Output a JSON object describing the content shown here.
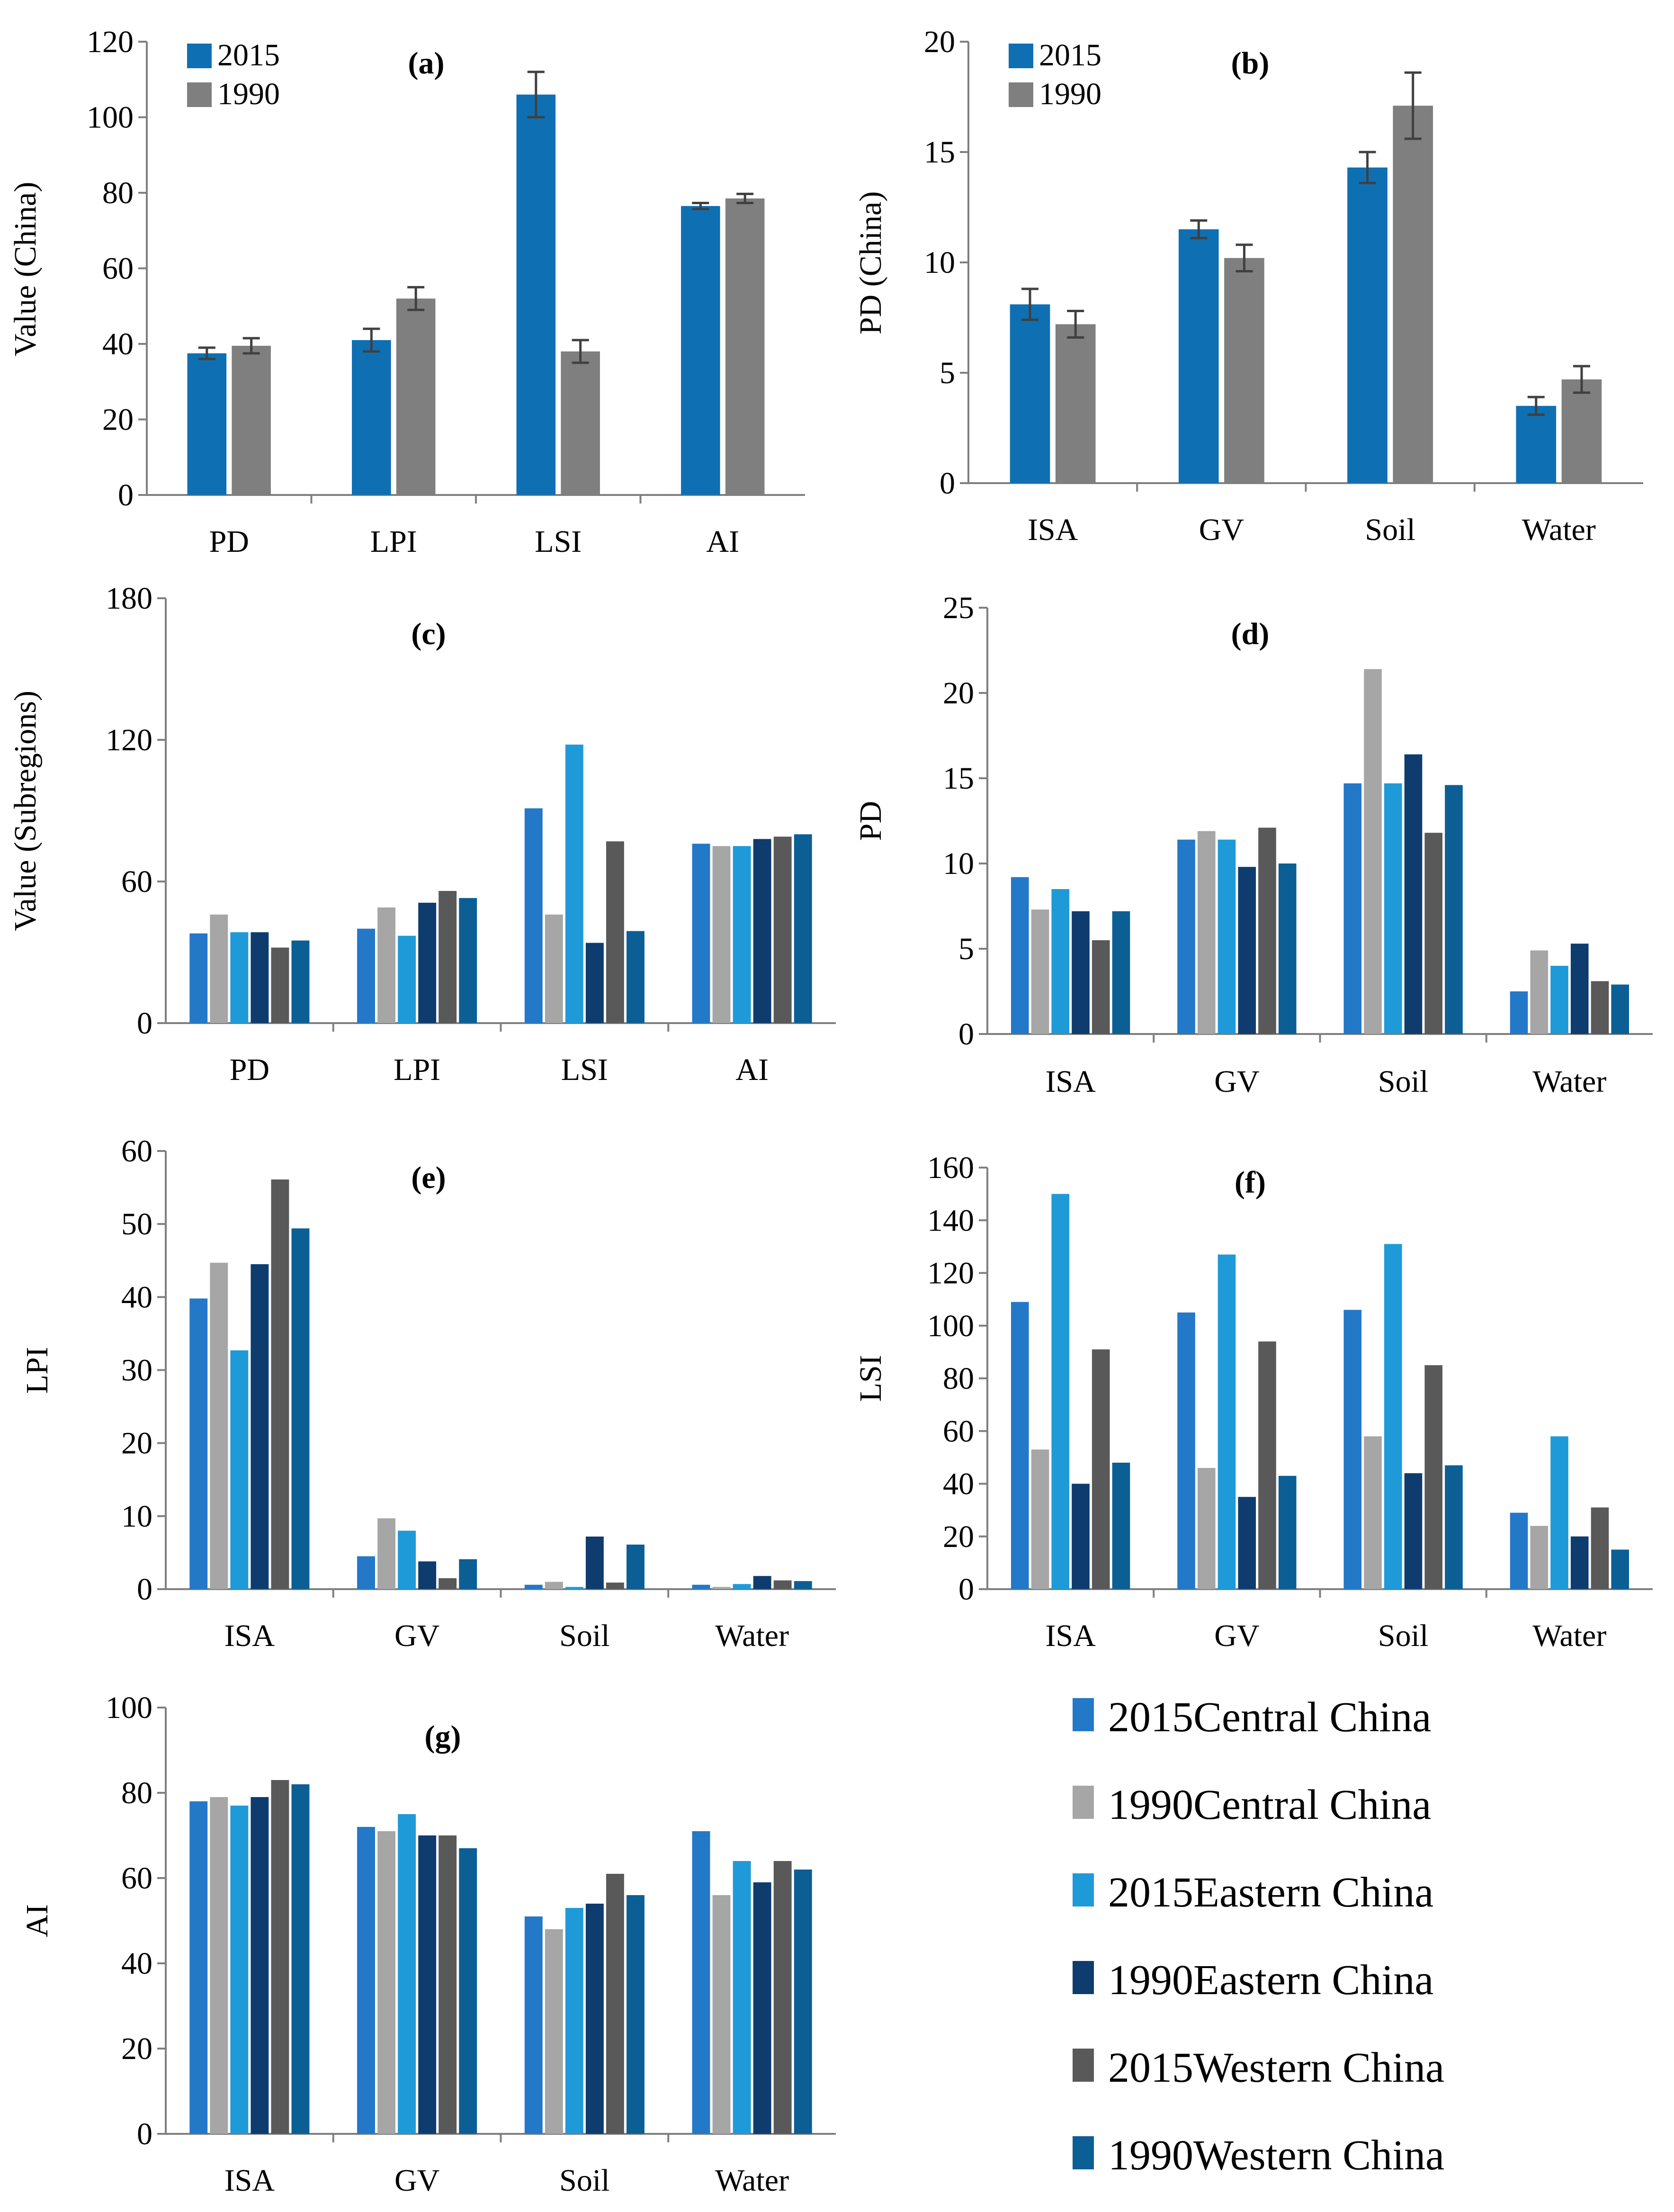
{
  "colors": {
    "y2015": "#0f6fb3",
    "y1990": "#7f7f7f",
    "sub2015Central": "#2378c8",
    "sub1990Central": "#a6a6a6",
    "sub2015Eastern": "#1f9ad8",
    "sub1990Eastern": "#0e3c6e",
    "sub2015Western": "#595959",
    "sub1990Western": "#0b5f95",
    "axis": "#7f7f7f",
    "errorbar": "#404040"
  },
  "legend_bottom_right": {
    "items": [
      {
        "label": "2015Central China",
        "color": "#2378c8"
      },
      {
        "label": "1990Central China",
        "color": "#a6a6a6"
      },
      {
        "label": "2015Eastern China",
        "color": "#1f9ad8"
      },
      {
        "label": "1990Eastern China",
        "color": "#0e3c6e"
      },
      {
        "label": "2015Western China",
        "color": "#595959"
      },
      {
        "label": "1990Western China",
        "color": "#0b5f95"
      }
    ]
  },
  "chart_data": [
    {
      "id": "a",
      "title": "(a)",
      "type": "bar",
      "ylabel": "Value (China)",
      "ylim": [
        0,
        120
      ],
      "yticks": [
        0,
        20,
        40,
        60,
        80,
        100,
        120
      ],
      "categories": [
        "PD",
        "LPI",
        "LSI",
        "AI"
      ],
      "legend": "top-left",
      "series": [
        {
          "name": "2015",
          "color": "#0f6fb3",
          "values": [
            37.5,
            41,
            106,
            76.5
          ],
          "errors": [
            1.5,
            3,
            6,
            0.8
          ]
        },
        {
          "name": "1990",
          "color": "#7f7f7f",
          "values": [
            39.5,
            52,
            38,
            78.5
          ],
          "errors": [
            2,
            3,
            3,
            1.2
          ]
        }
      ]
    },
    {
      "id": "b",
      "title": "(b)",
      "type": "bar",
      "ylabel": "PD (China)",
      "ylim": [
        0,
        20
      ],
      "yticks": [
        0,
        5,
        10,
        15,
        20
      ],
      "categories": [
        "ISA",
        "GV",
        "Soil",
        "Water"
      ],
      "legend": "top-left",
      "series": [
        {
          "name": "2015",
          "color": "#0f6fb3",
          "values": [
            8.1,
            11.5,
            14.3,
            3.5
          ],
          "errors": [
            0.7,
            0.4,
            0.7,
            0.4
          ]
        },
        {
          "name": "1990",
          "color": "#7f7f7f",
          "values": [
            7.2,
            10.2,
            17.1,
            4.7
          ],
          "errors": [
            0.6,
            0.6,
            1.5,
            0.6
          ]
        }
      ]
    },
    {
      "id": "c",
      "title": "(c)",
      "type": "bar",
      "ylabel": "Value (Subregions)",
      "ylim": [
        0,
        180
      ],
      "yticks": [
        0,
        60,
        120,
        180
      ],
      "categories": [
        "PD",
        "LPI",
        "LSI",
        "AI"
      ],
      "series": [
        {
          "name": "2015Central China",
          "color": "#2378c8",
          "values": [
            38,
            40,
            91,
            76
          ]
        },
        {
          "name": "1990Central China",
          "color": "#a6a6a6",
          "values": [
            46,
            49,
            46,
            75
          ]
        },
        {
          "name": "2015Eastern China",
          "color": "#1f9ad8",
          "values": [
            38.5,
            37,
            118,
            75
          ]
        },
        {
          "name": "1990Eastern China",
          "color": "#0e3c6e",
          "values": [
            38.5,
            51,
            34,
            78
          ]
        },
        {
          "name": "2015Western China",
          "color": "#595959",
          "values": [
            32,
            56,
            77,
            79
          ]
        },
        {
          "name": "1990Western China",
          "color": "#0b5f95",
          "values": [
            35,
            53,
            39,
            80
          ]
        }
      ]
    },
    {
      "id": "d",
      "title": "(d)",
      "type": "bar",
      "ylabel": "PD",
      "ylim": [
        0,
        25
      ],
      "yticks": [
        0,
        5,
        10,
        15,
        20,
        25
      ],
      "categories": [
        "ISA",
        "GV",
        "Soil",
        "Water"
      ],
      "series": [
        {
          "name": "2015Central China",
          "color": "#2378c8",
          "values": [
            9.2,
            11.4,
            14.7,
            2.5
          ]
        },
        {
          "name": "1990Central China",
          "color": "#a6a6a6",
          "values": [
            7.3,
            11.9,
            21.4,
            4.9
          ]
        },
        {
          "name": "2015Eastern China",
          "color": "#1f9ad8",
          "values": [
            8.5,
            11.4,
            14.7,
            4.0
          ]
        },
        {
          "name": "1990Eastern China",
          "color": "#0e3c6e",
          "values": [
            7.2,
            9.8,
            16.4,
            5.3
          ]
        },
        {
          "name": "2015Western China",
          "color": "#595959",
          "values": [
            5.5,
            12.1,
            11.8,
            3.1
          ]
        },
        {
          "name": "1990Western China",
          "color": "#0b5f95",
          "values": [
            7.2,
            10.0,
            14.6,
            2.9
          ]
        }
      ]
    },
    {
      "id": "e",
      "title": "(e)",
      "type": "bar",
      "ylabel": "LPI",
      "ylim": [
        0,
        60
      ],
      "yticks": [
        0,
        10,
        20,
        30,
        40,
        50,
        60
      ],
      "categories": [
        "ISA",
        "GV",
        "Soil",
        "Water"
      ],
      "series": [
        {
          "name": "2015Central China",
          "color": "#2378c8",
          "values": [
            39.8,
            4.5,
            0.6,
            0.6
          ]
        },
        {
          "name": "1990Central China",
          "color": "#a6a6a6",
          "values": [
            44.7,
            9.7,
            1.0,
            0.3
          ]
        },
        {
          "name": "2015Eastern China",
          "color": "#1f9ad8",
          "values": [
            32.7,
            8.0,
            0.3,
            0.7
          ]
        },
        {
          "name": "1990Eastern China",
          "color": "#0e3c6e",
          "values": [
            44.5,
            3.8,
            7.2,
            1.8
          ]
        },
        {
          "name": "2015Western China",
          "color": "#595959",
          "values": [
            56.1,
            1.5,
            0.9,
            1.2
          ]
        },
        {
          "name": "1990Western China",
          "color": "#0b5f95",
          "values": [
            49.4,
            4.1,
            6.1,
            1.1
          ]
        }
      ]
    },
    {
      "id": "f",
      "title": "(f)",
      "type": "bar",
      "ylabel": "LSI",
      "ylim": [
        0,
        160
      ],
      "yticks": [
        0,
        20,
        40,
        60,
        80,
        100,
        120,
        140,
        160
      ],
      "categories": [
        "ISA",
        "GV",
        "Soil",
        "Water"
      ],
      "series": [
        {
          "name": "2015Central China",
          "color": "#2378c8",
          "values": [
            109,
            105,
            106,
            29
          ]
        },
        {
          "name": "1990Central China",
          "color": "#a6a6a6",
          "values": [
            53,
            46,
            58,
            24
          ]
        },
        {
          "name": "2015Eastern China",
          "color": "#1f9ad8",
          "values": [
            150,
            127,
            131,
            58
          ]
        },
        {
          "name": "1990Eastern China",
          "color": "#0e3c6e",
          "values": [
            40,
            35,
            44,
            20
          ]
        },
        {
          "name": "2015Western China",
          "color": "#595959",
          "values": [
            91,
            94,
            85,
            31
          ]
        },
        {
          "name": "1990Western China",
          "color": "#0b5f95",
          "values": [
            48,
            43,
            47,
            15
          ]
        }
      ]
    },
    {
      "id": "g",
      "title": "(g)",
      "type": "bar",
      "ylabel": "AI",
      "ylim": [
        0,
        100
      ],
      "yticks": [
        0,
        20,
        40,
        60,
        80,
        100
      ],
      "categories": [
        "ISA",
        "GV",
        "Soil",
        "Water"
      ],
      "series": [
        {
          "name": "2015Central China",
          "color": "#2378c8",
          "values": [
            78,
            72,
            51,
            71
          ]
        },
        {
          "name": "1990Central China",
          "color": "#a6a6a6",
          "values": [
            79,
            71,
            48,
            56
          ]
        },
        {
          "name": "2015Eastern China",
          "color": "#1f9ad8",
          "values": [
            77,
            75,
            53,
            64
          ]
        },
        {
          "name": "1990Eastern China",
          "color": "#0e3c6e",
          "values": [
            79,
            70,
            54,
            59
          ]
        },
        {
          "name": "2015Western China",
          "color": "#595959",
          "values": [
            83,
            70,
            61,
            64
          ]
        },
        {
          "name": "1990Western China",
          "color": "#0b5f95",
          "values": [
            82,
            67,
            56,
            62
          ]
        }
      ]
    }
  ]
}
